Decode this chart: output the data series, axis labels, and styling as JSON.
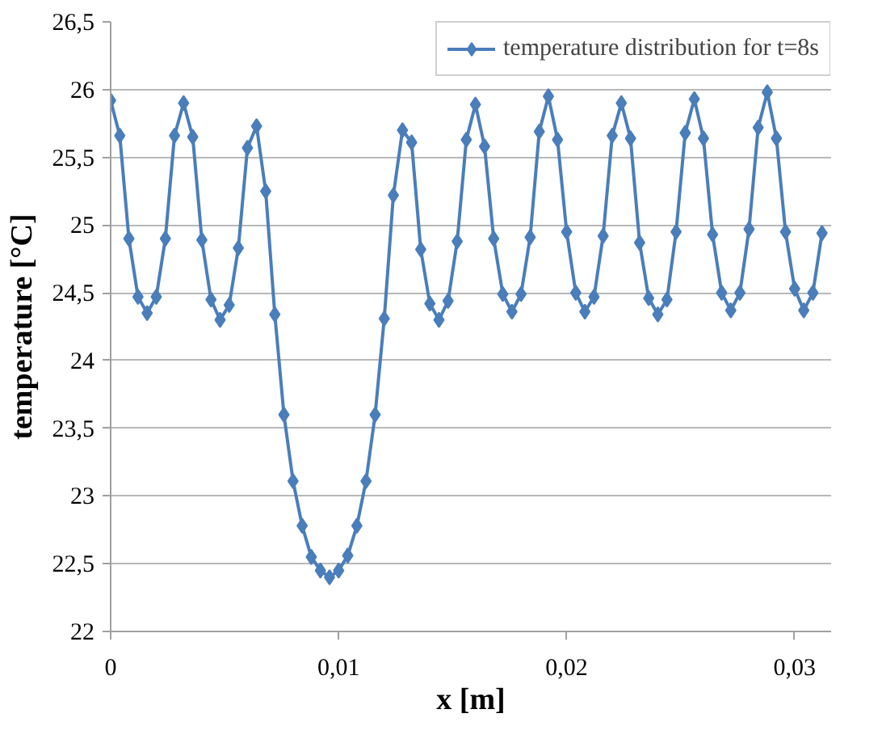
{
  "chart_data": {
    "type": "line",
    "xlabel": "x [m]",
    "ylabel": "temperature [°C]",
    "x": [
      0,
      0.0004,
      0.0008,
      0.0012,
      0.0016,
      0.002,
      0.0024,
      0.0028,
      0.0032,
      0.0036,
      0.004,
      0.0044,
      0.0048,
      0.0052,
      0.0056,
      0.006,
      0.0064,
      0.0068,
      0.0072,
      0.0076,
      0.008,
      0.0084,
      0.0088,
      0.0092,
      0.0096,
      0.01,
      0.0104,
      0.0108,
      0.0112,
      0.0116,
      0.012,
      0.0124,
      0.0128,
      0.0132,
      0.0136,
      0.014,
      0.0144,
      0.0148,
      0.0152,
      0.0156,
      0.016,
      0.0164,
      0.0168,
      0.0172,
      0.0176,
      0.018,
      0.0184,
      0.0188,
      0.0192,
      0.0196,
      0.02,
      0.0204,
      0.0208,
      0.0212,
      0.0216,
      0.022,
      0.0224,
      0.0228,
      0.0232,
      0.0236,
      0.024,
      0.0244,
      0.0248,
      0.0252,
      0.0256,
      0.026,
      0.0264,
      0.0268,
      0.0272,
      0.0276,
      0.028,
      0.0284,
      0.0288,
      0.0292,
      0.0296,
      0.03,
      0.0304,
      0.0308,
      0.0312
    ],
    "series": [
      {
        "name": "temperature distribution for t=8s",
        "color": "#4a7ebb",
        "values": [
          25.92,
          25.66,
          24.9,
          24.47,
          24.35,
          24.47,
          24.9,
          25.66,
          25.9,
          25.65,
          24.89,
          24.45,
          24.3,
          24.41,
          24.83,
          25.57,
          25.73,
          25.25,
          24.34,
          23.6,
          23.11,
          22.78,
          22.55,
          22.45,
          22.4,
          22.45,
          22.56,
          22.78,
          23.11,
          23.6,
          24.31,
          25.22,
          25.7,
          25.61,
          24.82,
          24.42,
          24.3,
          24.44,
          24.88,
          25.63,
          25.89,
          25.58,
          24.9,
          24.49,
          24.36,
          24.49,
          24.91,
          25.69,
          25.95,
          25.63,
          24.95,
          24.5,
          24.36,
          24.47,
          24.92,
          25.66,
          25.9,
          25.64,
          24.87,
          24.46,
          24.34,
          24.45,
          24.95,
          25.68,
          25.93,
          25.64,
          24.93,
          24.5,
          24.37,
          24.5,
          24.97,
          25.72,
          25.98,
          25.64,
          24.95,
          24.53,
          24.37,
          24.5,
          24.94
        ]
      }
    ],
    "xlim": [
      0,
      0.0316
    ],
    "ylim": [
      22,
      26.5
    ],
    "xticks": [
      0,
      {
        "value": 0.01,
        "label": "0,01"
      },
      {
        "value": 0.02,
        "label": "0,02"
      },
      {
        "value": 0.03,
        "label": "0,03"
      }
    ],
    "yticks": [
      22,
      {
        "value": 22.5,
        "label": "22,5"
      },
      23,
      {
        "value": 23.5,
        "label": "23,5"
      },
      24,
      {
        "value": 24.5,
        "label": "24,5"
      },
      25,
      {
        "value": 25.5,
        "label": "25,5"
      },
      26,
      {
        "value": 26.5,
        "label": "26,5"
      }
    ],
    "grid": "y",
    "legend": "top right",
    "marker": "diamond",
    "line_style": "solid"
  }
}
